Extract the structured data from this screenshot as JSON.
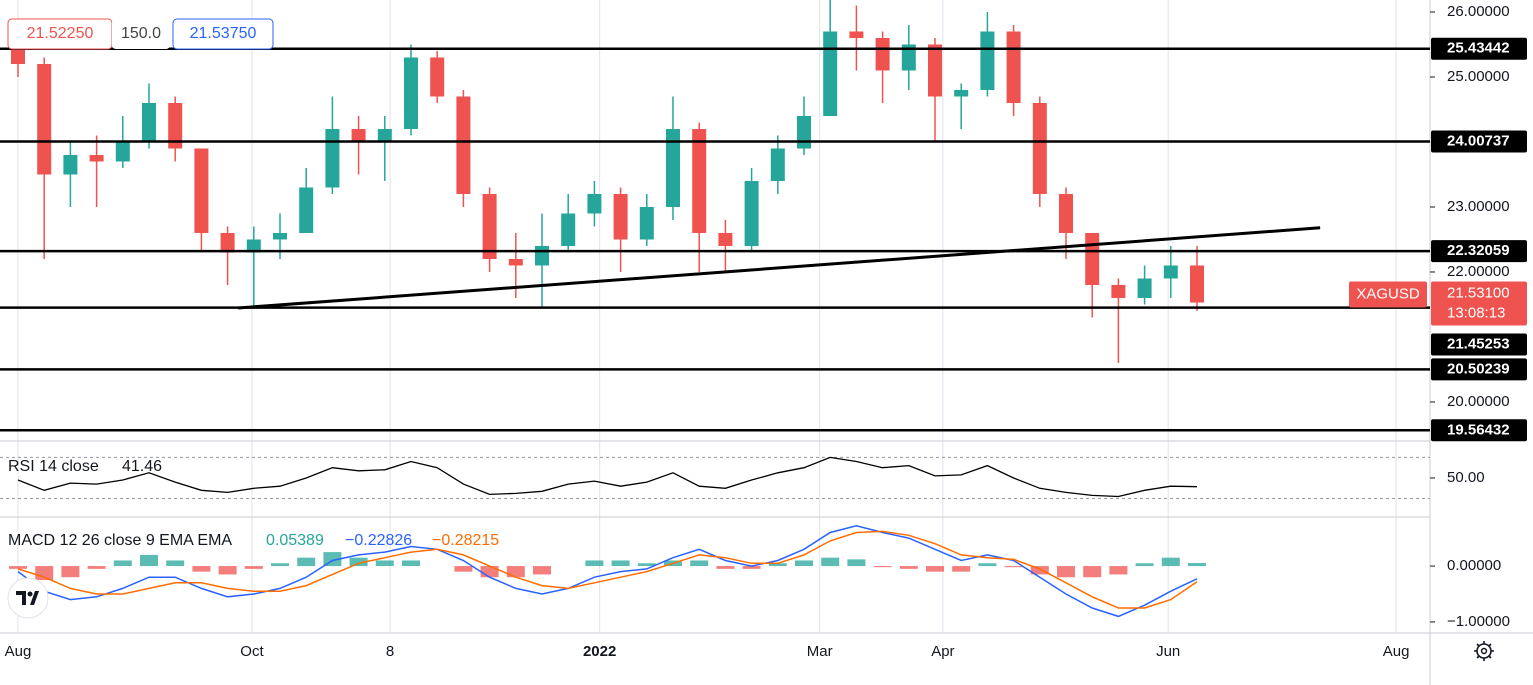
{
  "chart_data": {
    "type": "candlestick",
    "symbol": "XAGUSD",
    "countdown": "13:08:13",
    "last_price": {
      "value": 21.531,
      "label": "21.53100"
    },
    "quotes": {
      "bid": {
        "value": 21.5225,
        "label": "21.52250"
      },
      "spread": {
        "value": 150,
        "label": "150.0"
      },
      "ask": {
        "value": 21.5375,
        "label": "21.53750"
      }
    },
    "up_color": "#26a69a",
    "down_color": "#ef5350",
    "x": [
      0,
      1,
      2,
      3,
      4,
      5,
      6,
      7,
      8,
      9,
      10,
      11,
      12,
      13,
      14,
      15,
      16,
      17,
      18,
      19,
      20,
      21,
      22,
      23,
      24,
      25,
      26,
      27,
      28,
      29,
      30,
      31,
      32,
      33,
      34,
      35,
      36,
      37,
      38,
      39,
      40,
      41,
      42,
      43,
      44,
      45
    ],
    "open": [
      25.6,
      25.2,
      23.5,
      23.8,
      23.7,
      24.0,
      24.6,
      23.9,
      22.6,
      22.3,
      22.5,
      22.6,
      23.3,
      24.2,
      24.0,
      24.2,
      25.3,
      24.7,
      23.2,
      22.2,
      22.1,
      22.4,
      22.9,
      23.2,
      22.5,
      23.0,
      24.2,
      22.6,
      22.4,
      23.4,
      23.9,
      24.4,
      25.7,
      25.6,
      25.1,
      25.5,
      24.7,
      24.8,
      25.7,
      24.6,
      23.2,
      22.6,
      21.8,
      21.6,
      21.9,
      22.1
    ],
    "high": [
      25.7,
      25.3,
      24.0,
      24.1,
      24.4,
      24.9,
      24.7,
      23.9,
      22.7,
      22.7,
      22.9,
      23.6,
      24.7,
      24.4,
      24.4,
      25.5,
      25.4,
      24.8,
      23.3,
      22.6,
      22.9,
      23.2,
      23.4,
      23.3,
      23.2,
      24.7,
      24.3,
      22.8,
      23.6,
      24.1,
      24.7,
      26.2,
      26.1,
      25.7,
      25.8,
      25.6,
      24.9,
      26.0,
      25.8,
      24.7,
      23.3,
      22.6,
      21.9,
      22.1,
      22.4,
      22.4
    ],
    "low": [
      25.0,
      22.2,
      23.0,
      23.0,
      23.6,
      23.9,
      23.7,
      22.3,
      21.8,
      21.45,
      22.2,
      22.6,
      23.2,
      23.5,
      23.4,
      24.1,
      24.6,
      23.0,
      22.0,
      21.6,
      21.45,
      22.3,
      22.7,
      22.0,
      22.4,
      22.8,
      22.0,
      22.0,
      22.3,
      23.2,
      23.8,
      24.4,
      25.1,
      24.6,
      24.8,
      24.0,
      24.2,
      24.7,
      24.4,
      23.0,
      22.2,
      21.3,
      20.6,
      21.5,
      21.6,
      21.4
    ],
    "close": [
      25.2,
      23.5,
      23.8,
      23.7,
      24.0,
      24.6,
      23.9,
      22.6,
      22.3,
      22.5,
      22.6,
      23.3,
      24.2,
      24.0,
      24.2,
      25.3,
      24.7,
      23.2,
      22.2,
      22.1,
      22.4,
      22.9,
      23.2,
      22.5,
      23.0,
      24.2,
      22.6,
      22.4,
      23.4,
      23.9,
      24.4,
      25.7,
      25.6,
      25.1,
      25.5,
      24.7,
      24.8,
      25.7,
      24.6,
      23.2,
      22.6,
      21.8,
      21.6,
      21.9,
      22.1,
      21.53
    ],
    "xlim": [
      -0.687,
      53.893
    ],
    "ylim": [
      19.415,
      26.1846
    ],
    "xticks": [
      {
        "value": 0,
        "label": "Aug"
      },
      {
        "value": 8.93,
        "label": "Oct"
      },
      {
        "value": 14.2,
        "label": "8"
      },
      {
        "value": 22.2,
        "label": "2022"
      },
      {
        "value": 30.6,
        "label": "Mar"
      },
      {
        "value": 35.3,
        "label": "Apr"
      },
      {
        "value": 43.9,
        "label": "Jun"
      },
      {
        "value": 52.6,
        "label": "Aug"
      }
    ],
    "yticks": [
      {
        "value": 26,
        "label": "26.00000"
      },
      {
        "value": 25,
        "label": "25.00000"
      },
      {
        "value": 23,
        "label": "23.00000"
      },
      {
        "value": 22,
        "label": "22.00000"
      },
      {
        "value": 20,
        "label": "20.00000"
      }
    ],
    "levels": [
      25.43442,
      24.00737,
      22.32059,
      21.45253,
      20.50239,
      19.56432
    ],
    "trendline": {
      "x": [
        8.4,
        49.7
      ],
      "y": [
        21.446,
        22.68
      ]
    },
    "rsi": {
      "title": "RSI 14 close",
      "color": "#000000",
      "ylim": [
        13,
        85
      ],
      "yticks": [
        {
          "value": 50,
          "label": "50.00"
        }
      ],
      "bands": [
        70,
        30
      ],
      "values": [
        48,
        38,
        45,
        44,
        48,
        55,
        46,
        38,
        36,
        40,
        42,
        50,
        60,
        57,
        58,
        66,
        60,
        44,
        34,
        35,
        37,
        44,
        47,
        42,
        46,
        55,
        42,
        40,
        48,
        55,
        60,
        70,
        66,
        60,
        62,
        52,
        53,
        62,
        50,
        40,
        36,
        33,
        32,
        38,
        42,
        41.46
      ]
    },
    "macd": {
      "title": "MACD 12 26 close 9 EMA EMA",
      "ylim": [
        -1.18,
        0.86
      ],
      "yticks": [
        {
          "value": 0,
          "label": "0.00000"
        },
        {
          "value": -1,
          "label": "−1.00000"
        }
      ],
      "histogram": {
        "color_up": "#26a69a",
        "color_down": "#ef5350",
        "label": "0.05389",
        "values": [
          -0.05,
          -0.25,
          -0.2,
          -0.05,
          0.1,
          0.2,
          0.1,
          -0.1,
          -0.15,
          -0.05,
          0.05,
          0.15,
          0.25,
          0.15,
          0.1,
          0.1,
          0.0,
          -0.1,
          -0.2,
          -0.2,
          -0.15,
          0.0,
          0.1,
          0.1,
          0.05,
          0.1,
          0.1,
          -0.05,
          -0.05,
          0.05,
          0.1,
          0.15,
          0.12,
          -0.02,
          -0.05,
          -0.1,
          -0.1,
          0.05,
          -0.02,
          -0.15,
          -0.2,
          -0.2,
          -0.15,
          0.05,
          0.15,
          0.05389
        ]
      },
      "macd": {
        "color": "#2962ff",
        "label": "−0.22826",
        "values": [
          -0.1,
          -0.45,
          -0.6,
          -0.55,
          -0.4,
          -0.2,
          -0.2,
          -0.4,
          -0.55,
          -0.5,
          -0.4,
          -0.2,
          0.1,
          0.2,
          0.25,
          0.35,
          0.3,
          0.1,
          -0.2,
          -0.4,
          -0.5,
          -0.4,
          -0.2,
          -0.1,
          -0.05,
          0.15,
          0.3,
          0.1,
          0.0,
          0.1,
          0.3,
          0.6,
          0.72,
          0.6,
          0.5,
          0.3,
          0.1,
          0.2,
          0.1,
          -0.2,
          -0.5,
          -0.75,
          -0.9,
          -0.7,
          -0.45,
          -0.22826
        ]
      },
      "signal": {
        "color": "#ff6d00",
        "label": "−0.28215",
        "values": [
          -0.05,
          -0.2,
          -0.4,
          -0.5,
          -0.5,
          -0.4,
          -0.3,
          -0.3,
          -0.4,
          -0.45,
          -0.45,
          -0.35,
          -0.15,
          0.05,
          0.15,
          0.25,
          0.3,
          0.2,
          0.0,
          -0.2,
          -0.35,
          -0.4,
          -0.3,
          -0.2,
          -0.1,
          0.05,
          0.2,
          0.15,
          0.05,
          0.05,
          0.2,
          0.45,
          0.6,
          0.62,
          0.55,
          0.4,
          0.2,
          0.15,
          0.12,
          -0.05,
          -0.3,
          -0.55,
          -0.75,
          -0.75,
          -0.6,
          -0.28215
        ]
      }
    }
  }
}
